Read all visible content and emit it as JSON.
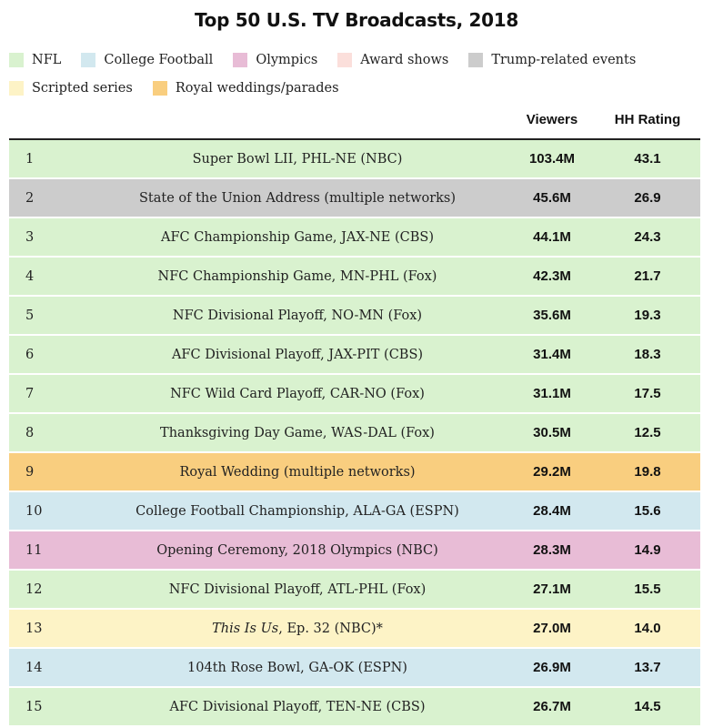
{
  "chart_data": {
    "type": "table",
    "title": "Top 50 U.S. TV Broadcasts, 2018",
    "columns": [
      "",
      "",
      "Viewers",
      "HH Rating"
    ],
    "legend": [
      {
        "label": "NFL",
        "color": "#d9f2cf"
      },
      {
        "label": "College Football",
        "color": "#d2e8ef"
      },
      {
        "label": "Olympics",
        "color": "#e8bcd6"
      },
      {
        "label": "Award shows",
        "color": "#fbdfdb"
      },
      {
        "label": "Trump-related events",
        "color": "#cccccc"
      },
      {
        "label": "Scripted series",
        "color": "#fdf3c6"
      },
      {
        "label": "Royal weddings/parades",
        "color": "#f9ce7f"
      }
    ],
    "rows": [
      {
        "rank": "1",
        "event": "Super Bowl LII, PHL-NE (NBC)",
        "viewers": "103.4M",
        "rating": "43.1",
        "category": "NFL"
      },
      {
        "rank": "2",
        "event": "State of the Union Address (multiple networks)",
        "viewers": "45.6M",
        "rating": "26.9",
        "category": "Trump-related events"
      },
      {
        "rank": "3",
        "event": "AFC Championship Game, JAX-NE (CBS)",
        "viewers": "44.1M",
        "rating": "24.3",
        "category": "NFL"
      },
      {
        "rank": "4",
        "event": "NFC Championship Game, MN-PHL (Fox)",
        "viewers": "42.3M",
        "rating": "21.7",
        "category": "NFL"
      },
      {
        "rank": "5",
        "event": "NFC Divisional Playoff, NO-MN (Fox)",
        "viewers": "35.6M",
        "rating": "19.3",
        "category": "NFL"
      },
      {
        "rank": "6",
        "event": "AFC Divisional Playoff, JAX-PIT (CBS)",
        "viewers": "31.4M",
        "rating": "18.3",
        "category": "NFL"
      },
      {
        "rank": "7",
        "event": "NFC Wild Card Playoff, CAR-NO (Fox)",
        "viewers": "31.1M",
        "rating": "17.5",
        "category": "NFL"
      },
      {
        "rank": "8",
        "event": "Thanksgiving Day Game, WAS-DAL (Fox)",
        "viewers": "30.5M",
        "rating": "12.5",
        "category": "NFL"
      },
      {
        "rank": "9",
        "event": "Royal Wedding (multiple networks)",
        "viewers": "29.2M",
        "rating": "19.8",
        "category": "Royal weddings/parades"
      },
      {
        "rank": "10",
        "event": "College Football Championship, ALA-GA (ESPN)",
        "viewers": "28.4M",
        "rating": "15.6",
        "category": "College Football"
      },
      {
        "rank": "11",
        "event": "Opening Ceremony, 2018 Olympics (NBC)",
        "viewers": "28.3M",
        "rating": "14.9",
        "category": "Olympics"
      },
      {
        "rank": "12",
        "event": "NFC Divisional Playoff, ATL-PHL (Fox)",
        "viewers": "27.1M",
        "rating": "15.5",
        "category": "NFL"
      },
      {
        "rank": "13",
        "event_italic": "This Is Us",
        "event_rest": ", Ep. 32 (NBC)*",
        "viewers": "27.0M",
        "rating": "14.0",
        "category": "Scripted series"
      },
      {
        "rank": "14",
        "event": "104th Rose Bowl, GA-OK (ESPN)",
        "viewers": "26.9M",
        "rating": "13.7",
        "category": "College Football"
      },
      {
        "rank": "15",
        "event": "AFC Divisional Playoff, TEN-NE (CBS)",
        "viewers": "26.7M",
        "rating": "14.5",
        "category": "NFL"
      }
    ]
  }
}
